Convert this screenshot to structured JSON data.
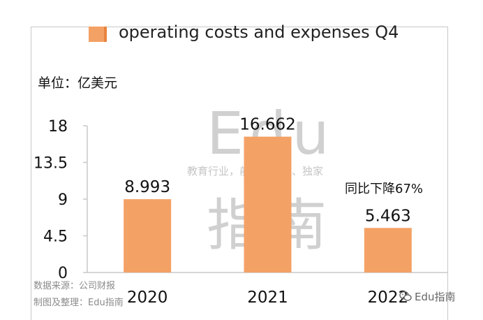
{
  "legend": {
    "label": "operating costs and expenses Q4"
  },
  "unit_label": "单位：亿美元",
  "annotation": "同比下降67%",
  "watermark": {
    "edu": "Edu",
    "slogan": "教育行业，前沿、深度、独家",
    "zhinan": "指南"
  },
  "source": {
    "line1": "数据来源：公司财报",
    "line2": "制图及整理：Edu指南"
  },
  "badge": {
    "text": "Edu指南",
    "icon": "wechat-icon"
  },
  "colors": {
    "bar": "#f4a166",
    "axis": "#c8c8c8"
  },
  "chart_data": {
    "type": "bar",
    "categories": [
      "2020",
      "2021",
      "2022"
    ],
    "series": [
      {
        "name": "operating costs and expenses Q4",
        "values": [
          8.993,
          16.662,
          5.463
        ]
      }
    ],
    "data_labels": [
      "8.993",
      "16.662",
      "5.463"
    ],
    "y_ticks": [
      "0",
      "4.5",
      "9",
      "13.5",
      "18"
    ],
    "ylim": [
      0,
      18
    ],
    "grid": false,
    "legend": "top"
  }
}
